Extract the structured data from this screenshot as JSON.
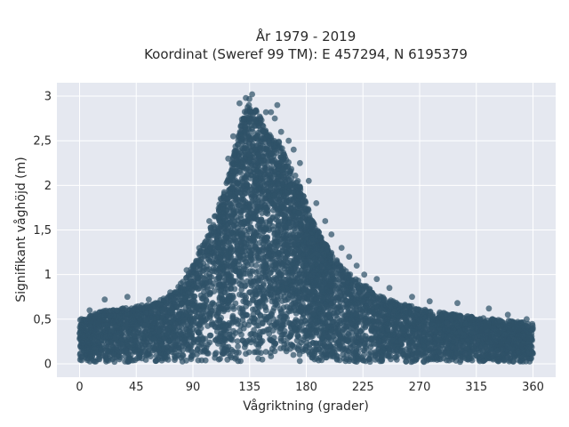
{
  "chart_data": {
    "type": "scatter",
    "title": "År 1979 - 2019",
    "subtitle": "Koordinat (Sweref 99 TM): E 457294, N 6195379",
    "xlabel": "Vågriktning (grader)",
    "ylabel": "Signifikant våghöjd (m)",
    "xlim": [
      -18,
      378
    ],
    "ylim": [
      -0.15,
      3.15
    ],
    "x_ticks": [
      0,
      45,
      90,
      135,
      180,
      225,
      270,
      315,
      360
    ],
    "x_tick_labels": [
      "0",
      "45",
      "90",
      "135",
      "180",
      "225",
      "270",
      "315",
      "360"
    ],
    "y_ticks": [
      0,
      0.5,
      1,
      1.5,
      2,
      2.5,
      3
    ],
    "y_tick_labels": [
      "0",
      "0,5",
      "1",
      "1,5",
      "2",
      "2,5",
      "3"
    ],
    "grid": true,
    "legend": "none",
    "colors": {
      "marker": "#2f5268",
      "plot_bg": "#e5e8f0",
      "grid": "#ffffff"
    },
    "upper_envelope": {
      "x": [
        0,
        10,
        20,
        30,
        45,
        60,
        75,
        90,
        100,
        110,
        120,
        128,
        135,
        142,
        150,
        158,
        165,
        175,
        185,
        195,
        205,
        215,
        225,
        240,
        255,
        270,
        285,
        300,
        315,
        330,
        345,
        360
      ],
      "y": [
        0.5,
        0.55,
        0.6,
        0.62,
        0.65,
        0.68,
        0.8,
        1.1,
        1.4,
        1.75,
        2.2,
        2.7,
        3.0,
        2.8,
        2.6,
        2.5,
        2.3,
        2.0,
        1.6,
        1.35,
        1.15,
        1.0,
        0.9,
        0.75,
        0.68,
        0.62,
        0.58,
        0.55,
        0.52,
        0.5,
        0.48,
        0.45
      ]
    },
    "outliers": [
      {
        "x": 137,
        "y": 3.02
      },
      {
        "x": 132,
        "y": 2.98
      },
      {
        "x": 127,
        "y": 2.92
      },
      {
        "x": 157,
        "y": 2.9
      },
      {
        "x": 152,
        "y": 2.82
      },
      {
        "x": 148,
        "y": 2.82
      },
      {
        "x": 155,
        "y": 2.75
      },
      {
        "x": 160,
        "y": 2.6
      },
      {
        "x": 166,
        "y": 2.5
      },
      {
        "x": 170,
        "y": 2.4
      },
      {
        "x": 175,
        "y": 2.25
      },
      {
        "x": 182,
        "y": 2.05
      },
      {
        "x": 188,
        "y": 1.8
      },
      {
        "x": 195,
        "y": 1.6
      },
      {
        "x": 200,
        "y": 1.45
      },
      {
        "x": 208,
        "y": 1.3
      },
      {
        "x": 214,
        "y": 1.2
      },
      {
        "x": 220,
        "y": 1.1
      },
      {
        "x": 226,
        "y": 1.0
      },
      {
        "x": 236,
        "y": 0.95
      },
      {
        "x": 246,
        "y": 0.85
      },
      {
        "x": 264,
        "y": 0.75
      },
      {
        "x": 278,
        "y": 0.7
      },
      {
        "x": 300,
        "y": 0.68
      },
      {
        "x": 325,
        "y": 0.62
      },
      {
        "x": 340,
        "y": 0.55
      },
      {
        "x": 355,
        "y": 0.5
      },
      {
        "x": 20,
        "y": 0.72
      },
      {
        "x": 8,
        "y": 0.6
      },
      {
        "x": 38,
        "y": 0.75
      },
      {
        "x": 55,
        "y": 0.72
      },
      {
        "x": 72,
        "y": 0.8
      },
      {
        "x": 85,
        "y": 1.05
      },
      {
        "x": 95,
        "y": 1.3
      },
      {
        "x": 103,
        "y": 1.6
      },
      {
        "x": 112,
        "y": 1.85
      },
      {
        "x": 118,
        "y": 2.3
      },
      {
        "x": 122,
        "y": 2.55
      }
    ]
  }
}
